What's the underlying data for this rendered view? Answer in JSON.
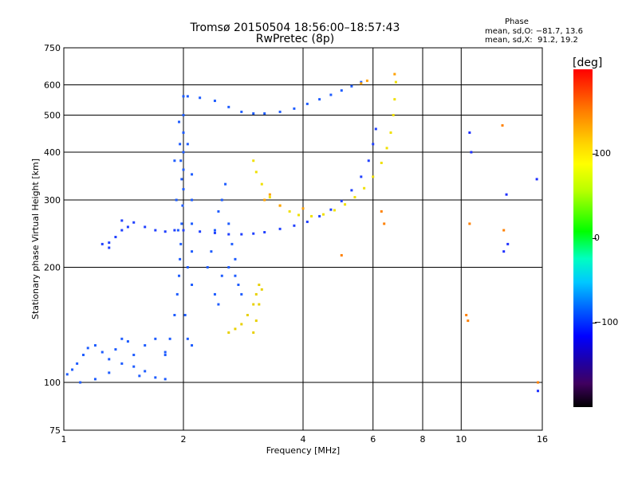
{
  "title_line1": "Tromsø 20150504 18:56:00–18:57:43",
  "title_line2": "RwPretec (8p)",
  "stats": {
    "header": "Phase",
    "line_O": "mean, sd,O: −81.7, 13.6",
    "line_X": "mean, sd,X:  91.2, 19.2"
  },
  "colorbar": {
    "title": "[deg]",
    "ticks": [
      {
        "value": 100,
        "label": "100"
      },
      {
        "value": 0,
        "label": "0"
      },
      {
        "value": -100,
        "label": "−100"
      }
    ],
    "range": [
      -200,
      200
    ]
  },
  "chart_data": {
    "type": "scatter",
    "xlabel": "Frequency [MHz]",
    "ylabel": "Stationary phase Virtual Height [km]",
    "x_scale": "log",
    "y_scale": "log",
    "xlim": [
      1,
      16
    ],
    "ylim": [
      75,
      750
    ],
    "x_ticks": [
      1,
      2,
      4,
      6,
      8,
      10,
      16
    ],
    "y_ticks": [
      75,
      100,
      200,
      300,
      400,
      500,
      600,
      750
    ],
    "grid": true,
    "point_groups": [
      {
        "name": "",
        "phase": -95,
        "color": "#1e5cff",
        "points": [
          [
            1.02,
            105
          ],
          [
            1.05,
            108
          ],
          [
            1.08,
            112
          ],
          [
            1.12,
            118
          ],
          [
            1.15,
            123
          ],
          [
            1.2,
            125
          ],
          [
            1.25,
            120
          ],
          [
            1.3,
            115
          ],
          [
            1.35,
            122
          ],
          [
            1.4,
            130
          ],
          [
            1.45,
            128
          ],
          [
            1.5,
            110
          ],
          [
            1.55,
            104
          ],
          [
            1.6,
            107
          ],
          [
            1.7,
            103
          ],
          [
            1.8,
            102
          ],
          [
            1.1,
            100
          ],
          [
            1.2,
            102
          ],
          [
            1.3,
            106
          ],
          [
            1.4,
            112
          ],
          [
            1.5,
            118
          ],
          [
            1.6,
            125
          ],
          [
            1.7,
            130
          ],
          [
            1.8,
            118
          ]
        ]
      },
      {
        "name": "",
        "phase": -95,
        "color": "#1e5cff",
        "points": [
          [
            1.8,
            120
          ],
          [
            1.85,
            130
          ],
          [
            1.9,
            150
          ],
          [
            1.93,
            170
          ],
          [
            1.95,
            190
          ],
          [
            1.96,
            210
          ],
          [
            1.97,
            230
          ],
          [
            1.98,
            260
          ],
          [
            1.99,
            290
          ],
          [
            2.0,
            320
          ],
          [
            2.0,
            360
          ],
          [
            2.0,
            400
          ],
          [
            2.0,
            450
          ],
          [
            2.0,
            500
          ],
          [
            2.0,
            560
          ],
          [
            1.95,
            480
          ],
          [
            1.96,
            420
          ],
          [
            1.97,
            380
          ],
          [
            1.98,
            340
          ],
          [
            2.05,
            200
          ],
          [
            2.1,
            180
          ],
          [
            2.1,
            220
          ],
          [
            2.1,
            260
          ],
          [
            2.1,
            300
          ],
          [
            2.1,
            350
          ],
          [
            2.05,
            420
          ],
          [
            1.9,
            380
          ],
          [
            1.92,
            300
          ],
          [
            1.94,
            250
          ],
          [
            2.02,
            150
          ],
          [
            2.05,
            130
          ],
          [
            2.1,
            125
          ]
        ]
      },
      {
        "name": "",
        "phase": -90,
        "color": "#1e5cff",
        "points": [
          [
            2.3,
            200
          ],
          [
            2.35,
            220
          ],
          [
            2.4,
            250
          ],
          [
            2.45,
            280
          ],
          [
            2.5,
            300
          ],
          [
            2.55,
            330
          ],
          [
            2.6,
            260
          ],
          [
            2.65,
            230
          ],
          [
            2.7,
            210
          ],
          [
            2.75,
            180
          ],
          [
            2.8,
            170
          ],
          [
            2.5,
            190
          ],
          [
            2.4,
            170
          ],
          [
            2.45,
            160
          ],
          [
            2.6,
            200
          ],
          [
            2.7,
            190
          ]
        ]
      },
      {
        "name": "",
        "phase": -100,
        "color": "#2040ff",
        "points": [
          [
            1.4,
            265
          ],
          [
            1.5,
            262
          ],
          [
            1.6,
            255
          ],
          [
            1.7,
            250
          ],
          [
            1.8,
            248
          ],
          [
            1.9,
            250
          ],
          [
            2.0,
            250
          ],
          [
            2.2,
            248
          ],
          [
            2.4,
            246
          ],
          [
            2.6,
            244
          ],
          [
            2.8,
            244
          ],
          [
            3.0,
            245
          ],
          [
            3.2,
            247
          ],
          [
            3.5,
            252
          ],
          [
            3.8,
            257
          ],
          [
            4.1,
            263
          ],
          [
            4.4,
            272
          ],
          [
            4.7,
            283
          ],
          [
            5.0,
            298
          ],
          [
            5.3,
            318
          ],
          [
            5.6,
            345
          ],
          [
            5.85,
            380
          ],
          [
            6.0,
            420
          ],
          [
            6.1,
            460
          ]
        ]
      },
      {
        "name": "",
        "phase": -105,
        "color": "#1e40ff",
        "points": [
          [
            1.25,
            230
          ],
          [
            1.3,
            232
          ],
          [
            1.35,
            240
          ],
          [
            1.4,
            250
          ],
          [
            1.45,
            255
          ],
          [
            1.3,
            225
          ]
        ]
      },
      {
        "name": "",
        "phase": -95,
        "color": "#1e5cff",
        "points": [
          [
            2.05,
            560
          ],
          [
            2.2,
            555
          ],
          [
            2.4,
            545
          ],
          [
            2.6,
            525
          ],
          [
            2.8,
            510
          ],
          [
            3.0,
            505
          ],
          [
            3.2,
            505
          ],
          [
            3.5,
            510
          ],
          [
            3.8,
            520
          ],
          [
            4.1,
            535
          ],
          [
            4.4,
            550
          ],
          [
            4.7,
            565
          ],
          [
            5.0,
            580
          ],
          [
            5.3,
            595
          ],
          [
            5.6,
            610
          ]
        ]
      },
      {
        "name": "",
        "phase": 95,
        "color": "#f0e000",
        "points": [
          [
            3.0,
            380
          ],
          [
            3.05,
            355
          ],
          [
            3.15,
            330
          ],
          [
            3.3,
            305
          ],
          [
            3.5,
            290
          ],
          [
            3.7,
            280
          ],
          [
            3.9,
            274
          ],
          [
            4.2,
            272
          ],
          [
            4.5,
            275
          ],
          [
            4.8,
            282
          ],
          [
            5.1,
            292
          ],
          [
            5.4,
            305
          ],
          [
            5.7,
            322
          ],
          [
            6.0,
            345
          ],
          [
            6.3,
            375
          ],
          [
            6.5,
            410
          ],
          [
            6.65,
            450
          ],
          [
            6.75,
            500
          ],
          [
            6.8,
            550
          ],
          [
            6.85,
            610
          ]
        ]
      },
      {
        "name": "",
        "phase": 110,
        "color": "#e8d000",
        "points": [
          [
            2.6,
            135
          ],
          [
            2.7,
            138
          ],
          [
            2.8,
            142
          ],
          [
            2.9,
            150
          ],
          [
            3.0,
            160
          ],
          [
            3.05,
            170
          ],
          [
            3.1,
            180
          ],
          [
            3.1,
            160
          ],
          [
            3.05,
            145
          ],
          [
            3.0,
            135
          ],
          [
            3.15,
            175
          ]
        ]
      },
      {
        "name": "",
        "phase": 130,
        "color": "#ffa000",
        "points": [
          [
            3.2,
            300
          ],
          [
            3.5,
            290
          ],
          [
            4.0,
            285
          ],
          [
            3.3,
            310
          ],
          [
            5.6,
            605
          ],
          [
            5.8,
            615
          ],
          [
            6.8,
            640
          ]
        ]
      },
      {
        "name": "",
        "phase": -120,
        "color": "#1e30ff",
        "points": [
          [
            10.5,
            450
          ],
          [
            10.6,
            400
          ],
          [
            13.0,
            310
          ],
          [
            12.8,
            220
          ],
          [
            13.1,
            230
          ],
          [
            15.5,
            340
          ],
          [
            15.6,
            95
          ]
        ]
      },
      {
        "name": "",
        "phase": 120,
        "color": "#ff8000",
        "points": [
          [
            10.3,
            150
          ],
          [
            10.4,
            145
          ],
          [
            12.7,
            470
          ],
          [
            12.8,
            250
          ],
          [
            10.5,
            260
          ],
          [
            15.6,
            100
          ],
          [
            5.0,
            215
          ],
          [
            6.3,
            280
          ],
          [
            6.4,
            260
          ]
        ]
      }
    ]
  }
}
